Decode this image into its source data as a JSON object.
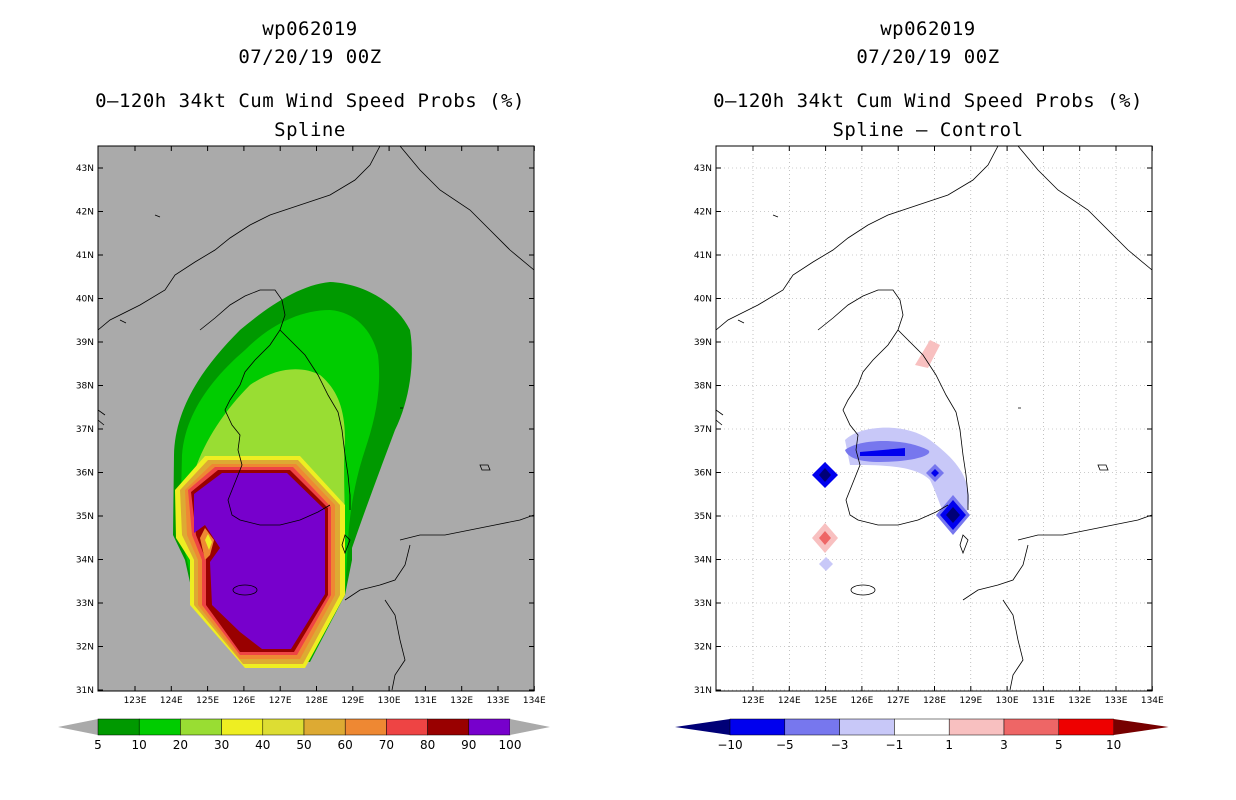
{
  "left": {
    "title1": "wp062019",
    "title2": "07/20/19 00Z",
    "title3": "0–120h 34kt Cum Wind Speed Probs (%)",
    "title4": "Spline",
    "colorbar": {
      "colors": [
        "#009900",
        "#00cc00",
        "#99dd33",
        "#eeee22",
        "#dddd33",
        "#ddaa33",
        "#ee8833",
        "#ee4444",
        "#990000",
        "#7700cc"
      ],
      "labels": [
        "5",
        "10",
        "20",
        "30",
        "40",
        "50",
        "60",
        "70",
        "80",
        "90",
        "100"
      ]
    }
  },
  "right": {
    "title1": "wp062019",
    "title2": "07/20/19 00Z",
    "title3": "0–120h 34kt Cum Wind Speed Probs (%)",
    "title4": "Spline – Control",
    "colorbar": {
      "colors": [
        "#0000ee",
        "#7777ee",
        "#c8c8f8",
        "#ffffff",
        "#f8c0c0",
        "#ee6666",
        "#ee0000"
      ],
      "labels": [
        "−10",
        "−5",
        "−3",
        "−1",
        "1",
        "3",
        "5",
        "10"
      ],
      "end_low": "#000077",
      "end_high": "#770000"
    }
  },
  "axes": {
    "lat_labels": [
      "43N",
      "42N",
      "41N",
      "40N",
      "39N",
      "38N",
      "37N",
      "36N",
      "35N",
      "34N",
      "33N",
      "32N",
      "31N"
    ],
    "lon_labels": [
      "123E",
      "124E",
      "125E",
      "126E",
      "127E",
      "128E",
      "129E",
      "130E",
      "131E",
      "132E",
      "133E",
      "134E"
    ]
  },
  "map_colors": {
    "land_background_left": "#aaaaaa",
    "background_right": "#ffffff"
  }
}
